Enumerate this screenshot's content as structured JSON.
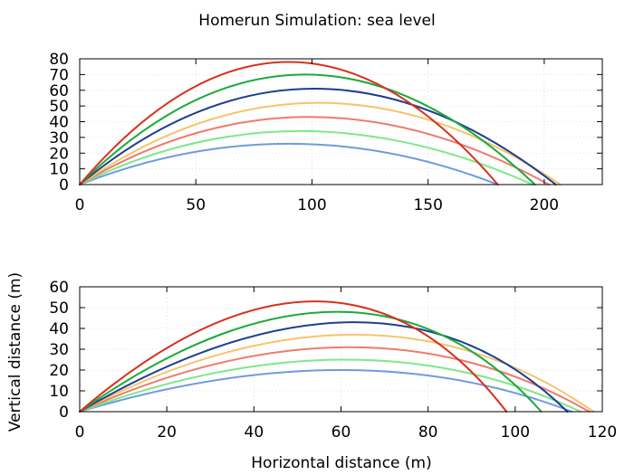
{
  "figure": {
    "title": "Homerun Simulation: sea level",
    "xlabel": "Horizontal distance (m)",
    "ylabel": "Vertical distance (m)"
  },
  "chart_data": [
    {
      "type": "line",
      "xlim": [
        0,
        225
      ],
      "ylim": [
        0,
        80
      ],
      "xticks": [
        0,
        50,
        100,
        150,
        200
      ],
      "yticks": [
        0,
        10,
        20,
        30,
        40,
        50,
        60,
        70,
        80
      ],
      "grid": true,
      "series": [
        {
          "color": "#6f9ae0",
          "values": [
            [
              0,
              0
            ],
            [
              90,
              26
            ],
            [
              180,
              0
            ]
          ]
        },
        {
          "color": "#7ee88a",
          "values": [
            [
              0,
              0
            ],
            [
              95,
              34
            ],
            [
              195,
              0
            ]
          ]
        },
        {
          "color": "#ef7a6e",
          "values": [
            [
              0,
              0
            ],
            [
              99,
              43
            ],
            [
              202,
              0
            ]
          ]
        },
        {
          "color": "#f5c46c",
          "values": [
            [
              0,
              0
            ],
            [
              103,
              52
            ],
            [
              207,
              0
            ]
          ]
        },
        {
          "color": "#1d3f8f",
          "values": [
            [
              0,
              0
            ],
            [
              101,
              61
            ],
            [
              205,
              0
            ]
          ]
        },
        {
          "color": "#1aaa3a",
          "values": [
            [
              0,
              0
            ],
            [
              97,
              70
            ],
            [
              196,
              0
            ]
          ]
        },
        {
          "color": "#d9301c",
          "values": [
            [
              0,
              0
            ],
            [
              90,
              78
            ],
            [
              180,
              0
            ]
          ]
        }
      ]
    },
    {
      "type": "line",
      "xlim": [
        0,
        120
      ],
      "ylim": [
        0,
        60
      ],
      "xticks": [
        0,
        20,
        40,
        60,
        80,
        100,
        120
      ],
      "yticks": [
        0,
        10,
        20,
        30,
        40,
        50,
        60
      ],
      "grid": true,
      "series": [
        {
          "color": "#6f9ae0",
          "values": [
            [
              0,
              0
            ],
            [
              60,
              20
            ],
            [
              113,
              0
            ]
          ]
        },
        {
          "color": "#7ee88a",
          "values": [
            [
              0,
              0
            ],
            [
              61,
              25
            ],
            [
              115,
              0
            ]
          ]
        },
        {
          "color": "#ef7a6e",
          "values": [
            [
              0,
              0
            ],
            [
              62,
              31
            ],
            [
              117,
              0
            ]
          ]
        },
        {
          "color": "#f5c46c",
          "values": [
            [
              0,
              0
            ],
            [
              63,
              37
            ],
            [
              118,
              0
            ]
          ]
        },
        {
          "color": "#1d3f8f",
          "values": [
            [
              0,
              0
            ],
            [
              63,
              43
            ],
            [
              112,
              0
            ]
          ]
        },
        {
          "color": "#1aaa3a",
          "values": [
            [
              0,
              0
            ],
            [
              59,
              48
            ],
            [
              106,
              0
            ]
          ]
        },
        {
          "color": "#d9301c",
          "values": [
            [
              0,
              0
            ],
            [
              54,
              53
            ],
            [
              98,
              0
            ]
          ]
        }
      ]
    }
  ]
}
